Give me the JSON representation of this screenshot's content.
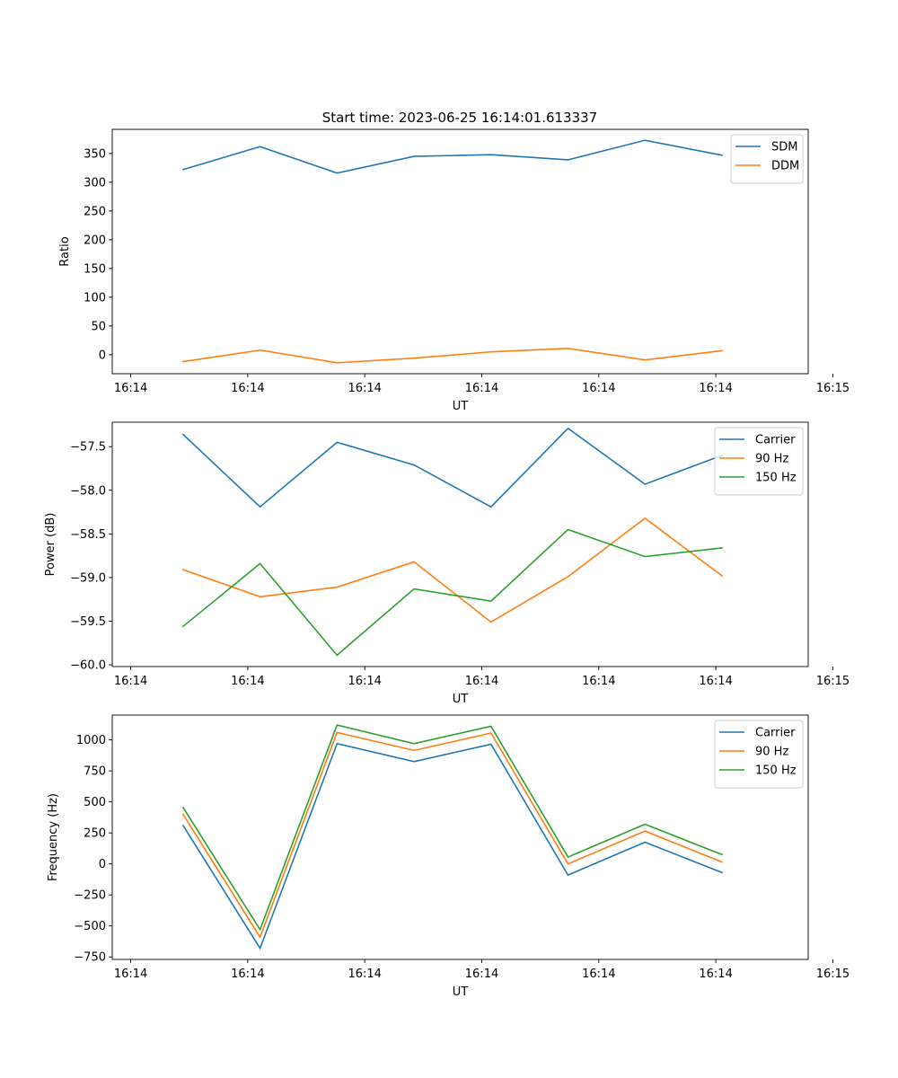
{
  "figure": {
    "title": "Start time: 2023-06-25 16:14:01.613337"
  },
  "chart_data": [
    {
      "type": "line",
      "ylabel": "Ratio",
      "xlabel": "UT",
      "x": [
        "16:14:05",
        "16:14:10",
        "16:14:15",
        "16:14:20",
        "16:14:25",
        "16:14:30",
        "16:14:35",
        "16:14:40"
      ],
      "xlim": [
        "16:14:00.4",
        "16:14:45.6"
      ],
      "xticks": [
        {
          "t": "16:14:01.6",
          "label": "16:14"
        },
        {
          "t": "16:14:09.2",
          "label": "16:14"
        },
        {
          "t": "16:14:16.8",
          "label": "16:14"
        },
        {
          "t": "16:14:24.4",
          "label": "16:14"
        },
        {
          "t": "16:14:32.0",
          "label": "16:14"
        },
        {
          "t": "16:14:39.6",
          "label": "16:14"
        },
        {
          "t": "16:14:47.2",
          "label": "16:15"
        }
      ],
      "ylim": [
        -33,
        392
      ],
      "yticks": [
        0,
        50,
        100,
        150,
        200,
        250,
        300,
        350
      ],
      "ytick_labels": [
        "0",
        "50",
        "100",
        "150",
        "200",
        "250",
        "300",
        "350"
      ],
      "legend_position": "upper-right",
      "series": [
        {
          "name": "SDM",
          "color": "#1f77b4",
          "values": [
            322,
            362,
            316,
            345,
            348,
            339,
            373,
            347
          ]
        },
        {
          "name": "DDM",
          "color": "#ff7f0e",
          "values": [
            -12,
            8,
            -14,
            -6,
            5,
            11,
            -9,
            7
          ]
        }
      ]
    },
    {
      "type": "line",
      "ylabel": "Power (dB)",
      "xlabel": "UT",
      "x": [
        "16:14:05",
        "16:14:10",
        "16:14:15",
        "16:14:20",
        "16:14:25",
        "16:14:30",
        "16:14:35",
        "16:14:40"
      ],
      "xlim": [
        "16:14:00.4",
        "16:14:45.6"
      ],
      "xticks": [
        {
          "t": "16:14:01.6",
          "label": "16:14"
        },
        {
          "t": "16:14:09.2",
          "label": "16:14"
        },
        {
          "t": "16:14:16.8",
          "label": "16:14"
        },
        {
          "t": "16:14:24.4",
          "label": "16:14"
        },
        {
          "t": "16:14:32.0",
          "label": "16:14"
        },
        {
          "t": "16:14:39.6",
          "label": "16:14"
        },
        {
          "t": "16:14:47.2",
          "label": "16:15"
        }
      ],
      "ylim": [
        -60.02,
        -57.22
      ],
      "yticks": [
        -60.0,
        -59.5,
        -59.0,
        -58.5,
        -58.0,
        -57.5
      ],
      "ytick_labels": [
        "−60.0",
        "−59.5",
        "−59.0",
        "−58.5",
        "−58.0",
        "−57.5"
      ],
      "legend_position": "upper-right",
      "series": [
        {
          "name": "Carrier",
          "color": "#1f77b4",
          "values": [
            -57.36,
            -58.19,
            -57.45,
            -57.71,
            -58.19,
            -57.29,
            -57.93,
            -57.6
          ]
        },
        {
          "name": "90 Hz",
          "color": "#ff7f0e",
          "values": [
            -58.91,
            -59.22,
            -59.11,
            -58.82,
            -59.51,
            -58.99,
            -58.32,
            -58.98
          ]
        },
        {
          "name": "150 Hz",
          "color": "#2ca02c",
          "values": [
            -59.56,
            -58.84,
            -59.89,
            -59.13,
            -59.27,
            -58.45,
            -58.76,
            -58.66
          ]
        }
      ]
    },
    {
      "type": "line",
      "ylabel": "Frequency (Hz)",
      "xlabel": "UT",
      "x": [
        "16:14:05",
        "16:14:10",
        "16:14:15",
        "16:14:20",
        "16:14:25",
        "16:14:30",
        "16:14:35",
        "16:14:40"
      ],
      "xlim": [
        "16:14:00.4",
        "16:14:45.6"
      ],
      "xticks": [
        {
          "t": "16:14:01.6",
          "label": "16:14"
        },
        {
          "t": "16:14:09.2",
          "label": "16:14"
        },
        {
          "t": "16:14:16.8",
          "label": "16:14"
        },
        {
          "t": "16:14:24.4",
          "label": "16:14"
        },
        {
          "t": "16:14:32.0",
          "label": "16:14"
        },
        {
          "t": "16:14:39.6",
          "label": "16:14"
        },
        {
          "t": "16:14:47.2",
          "label": "16:15"
        }
      ],
      "ylim": [
        -770,
        1200
      ],
      "yticks": [
        -750,
        -500,
        -250,
        0,
        250,
        500,
        750,
        1000
      ],
      "ytick_labels": [
        "−750",
        "−500",
        "−250",
        "0",
        "250",
        "500",
        "750",
        "1000"
      ],
      "legend_position": "upper-right",
      "series": [
        {
          "name": "Carrier",
          "color": "#1f77b4",
          "values": [
            310,
            -680,
            970,
            825,
            965,
            -90,
            175,
            -70
          ]
        },
        {
          "name": "90 Hz",
          "color": "#ff7f0e",
          "values": [
            400,
            -590,
            1060,
            915,
            1055,
            0,
            265,
            15
          ]
        },
        {
          "name": "150 Hz",
          "color": "#2ca02c",
          "values": [
            455,
            -530,
            1120,
            970,
            1110,
            55,
            320,
            75
          ]
        }
      ]
    }
  ]
}
